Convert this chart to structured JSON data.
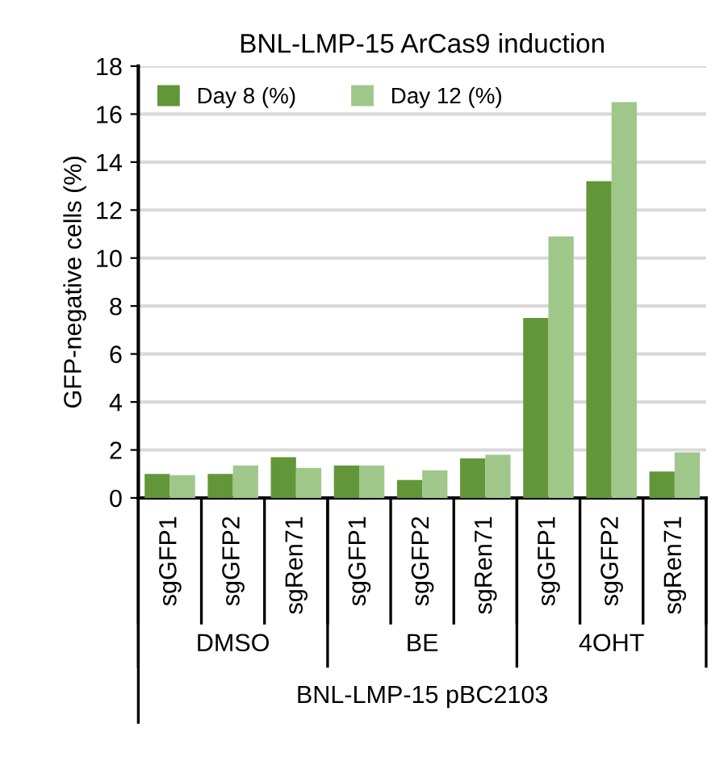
{
  "chart_data": {
    "type": "bar",
    "title": "BNL-LMP-15 ArCas9 induction",
    "ylabel": "GFP-negative cells (%)",
    "xlabel": "BNL-LMP-15 pBC2103",
    "categories": [
      "sgGFP1",
      "sgGFP2",
      "sgRen71",
      "sgGFP1",
      "sgGFP2",
      "sgRen71",
      "sgGFP1",
      "sgGFP2",
      "sgRen71"
    ],
    "series": [
      {
        "name": "Day 8 (%)",
        "color": "#629639",
        "values": [
          1.0,
          1.0,
          1.7,
          1.35,
          0.75,
          1.65,
          7.5,
          13.2,
          1.1
        ]
      },
      {
        "name": "Day 12 (%)",
        "color": "#a0c78a",
        "values": [
          0.95,
          1.35,
          1.25,
          1.35,
          1.15,
          1.8,
          10.9,
          16.5,
          1.9
        ]
      }
    ],
    "annotations": [
      "DMSO",
      "BE",
      "4OHT"
    ],
    "ylim": [
      0,
      18
    ],
    "yticks": [
      0,
      2,
      4,
      6,
      8,
      10,
      12,
      14,
      16,
      18
    ],
    "grid": "y",
    "legend": "top left"
  }
}
